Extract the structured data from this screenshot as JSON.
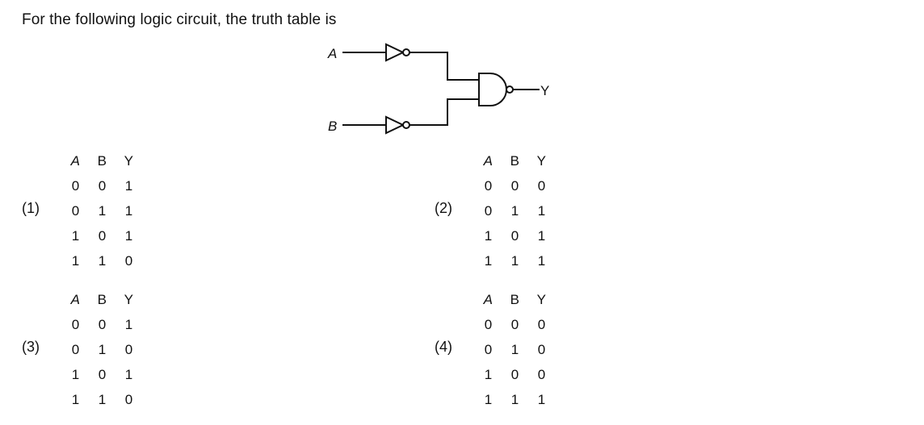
{
  "question": {
    "text": "For the following logic circuit, the truth table is"
  },
  "circuit": {
    "input_a": "A",
    "input_b": "B",
    "output": "Y"
  },
  "options": [
    {
      "label": "(1)",
      "headers": [
        "A",
        "B",
        "Y"
      ],
      "rows": [
        [
          "0",
          "0",
          "1"
        ],
        [
          "0",
          "1",
          "1"
        ],
        [
          "1",
          "0",
          "1"
        ],
        [
          "1",
          "1",
          "0"
        ]
      ]
    },
    {
      "label": "(2)",
      "headers": [
        "A",
        "B",
        "Y"
      ],
      "rows": [
        [
          "0",
          "0",
          "0"
        ],
        [
          "0",
          "1",
          "1"
        ],
        [
          "1",
          "0",
          "1"
        ],
        [
          "1",
          "1",
          "1"
        ]
      ]
    },
    {
      "label": "(3)",
      "headers": [
        "A",
        "B",
        "Y"
      ],
      "rows": [
        [
          "0",
          "0",
          "1"
        ],
        [
          "0",
          "1",
          "0"
        ],
        [
          "1",
          "0",
          "1"
        ],
        [
          "1",
          "1",
          "0"
        ]
      ]
    },
    {
      "label": "(4)",
      "headers": [
        "A",
        "B",
        "Y"
      ],
      "rows": [
        [
          "0",
          "0",
          "0"
        ],
        [
          "0",
          "1",
          "0"
        ],
        [
          "1",
          "0",
          "0"
        ],
        [
          "1",
          "1",
          "1"
        ]
      ]
    }
  ]
}
